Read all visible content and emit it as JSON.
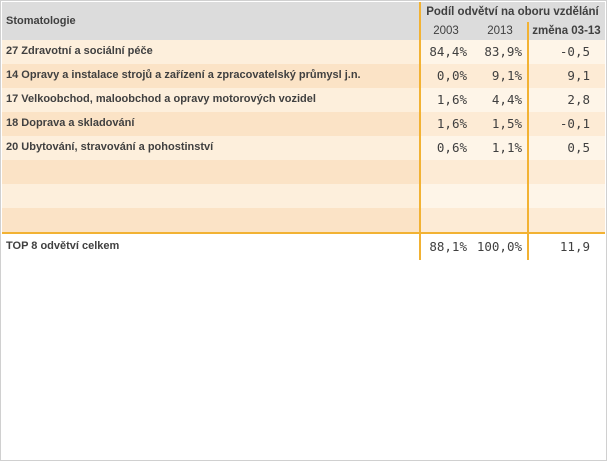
{
  "header": {
    "subject": "Stomatologie",
    "group_title": "Podíl odvětví na oboru vzdělání",
    "col_2003": "2003",
    "col_2013": "2013",
    "col_change": "změna 03-13"
  },
  "rows": [
    {
      "label": "27 Zdravotní a sociální péče",
      "v2003": "84,4%",
      "v2013": "83,9%",
      "change": "-0,5"
    },
    {
      "label": "14 Opravy a instalace strojů a zařízení a zpracovatelský průmysl j.n.",
      "v2003": "0,0%",
      "v2013": "9,1%",
      "change": "9,1"
    },
    {
      "label": "17 Velkoobchod, maloobchod a opravy motorových vozidel",
      "v2003": "1,6%",
      "v2013": "4,4%",
      "change": "2,8"
    },
    {
      "label": "18 Doprava a skladování",
      "v2003": "1,6%",
      "v2013": "1,5%",
      "change": "-0,1"
    },
    {
      "label": "20 Ubytování, stravování a pohostinství",
      "v2003": "0,6%",
      "v2013": "1,1%",
      "change": "0,5"
    },
    {
      "label": "",
      "v2003": "",
      "v2013": "",
      "change": ""
    },
    {
      "label": "",
      "v2003": "",
      "v2013": "",
      "change": ""
    },
    {
      "label": "",
      "v2003": "",
      "v2013": "",
      "change": ""
    }
  ],
  "total": {
    "label": "TOP 8 odvětví celkem",
    "v2003": "88,1%",
    "v2013": "100,0%",
    "change": "11,9"
  },
  "colors": {
    "accent": "#f2b233",
    "header_bg": "#dcdcdc",
    "row_light": "#fdefdc",
    "row_dark": "#fbe3c6"
  }
}
